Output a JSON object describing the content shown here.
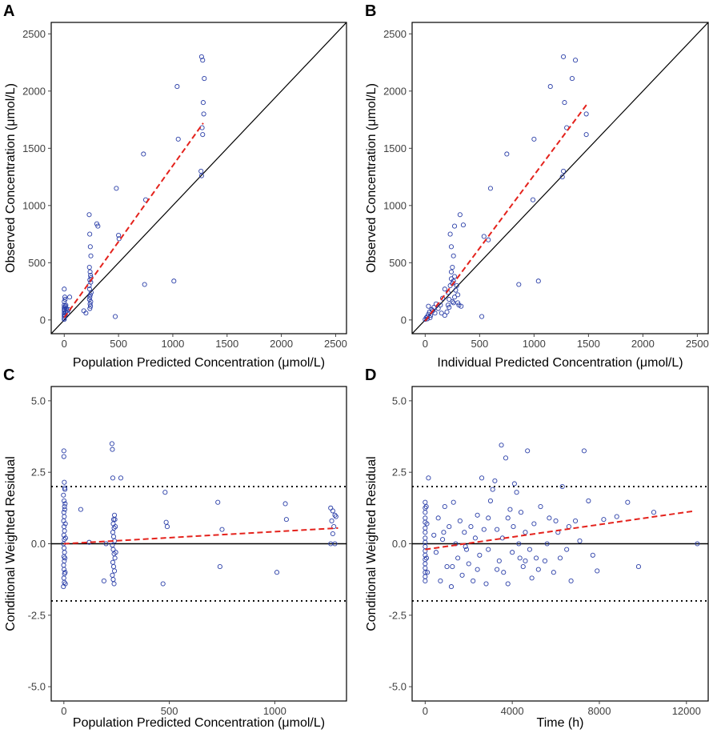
{
  "colors": {
    "point": "#2b3fa8",
    "fit": "#e4221c",
    "frame": "#000000",
    "tick": "#404040"
  },
  "chart_data": [
    {
      "panel": "A",
      "type": "scatter",
      "xlabel": "Population Predicted Concentration (μmol/L)",
      "ylabel": "Observed Concentration (μmol/L)",
      "xlim": [
        -120,
        2600
      ],
      "ylim": [
        -120,
        2600
      ],
      "xticks": [
        0,
        500,
        1000,
        1500,
        2000,
        2500
      ],
      "yticks": [
        0,
        500,
        1000,
        1500,
        2000,
        2500
      ],
      "identity_line": true,
      "fit_line": [
        [
          0,
          20
        ],
        [
          1280,
          1720
        ]
      ],
      "points": [
        [
          0,
          270
        ],
        [
          0,
          160
        ],
        [
          0,
          130
        ],
        [
          0,
          110
        ],
        [
          0,
          95
        ],
        [
          0,
          80
        ],
        [
          0,
          60
        ],
        [
          0,
          45
        ],
        [
          0,
          30
        ],
        [
          0,
          15
        ],
        [
          0,
          5
        ],
        [
          5,
          200
        ],
        [
          8,
          180
        ],
        [
          10,
          120
        ],
        [
          12,
          70
        ],
        [
          3,
          90
        ],
        [
          6,
          40
        ],
        [
          15,
          130
        ],
        [
          20,
          100
        ],
        [
          25,
          80
        ],
        [
          30,
          60
        ],
        [
          40,
          90
        ],
        [
          50,
          200
        ],
        [
          230,
          920
        ],
        [
          235,
          750
        ],
        [
          240,
          640
        ],
        [
          245,
          560
        ],
        [
          232,
          460
        ],
        [
          238,
          420
        ],
        [
          242,
          390
        ],
        [
          246,
          370
        ],
        [
          236,
          350
        ],
        [
          244,
          330
        ],
        [
          230,
          300
        ],
        [
          234,
          270
        ],
        [
          248,
          240
        ],
        [
          240,
          220
        ],
        [
          236,
          200
        ],
        [
          232,
          180
        ],
        [
          244,
          160
        ],
        [
          238,
          140
        ],
        [
          242,
          120
        ],
        [
          236,
          100
        ],
        [
          180,
          80
        ],
        [
          200,
          60
        ],
        [
          300,
          840
        ],
        [
          310,
          820
        ],
        [
          480,
          1150
        ],
        [
          500,
          740
        ],
        [
          505,
          710
        ],
        [
          470,
          30
        ],
        [
          730,
          1450
        ],
        [
          750,
          1050
        ],
        [
          740,
          310
        ],
        [
          1010,
          340
        ],
        [
          1040,
          2040
        ],
        [
          1050,
          1580
        ],
        [
          1265,
          2300
        ],
        [
          1275,
          2270
        ],
        [
          1290,
          2110
        ],
        [
          1280,
          1900
        ],
        [
          1285,
          1800
        ],
        [
          1270,
          1680
        ],
        [
          1275,
          1620
        ],
        [
          1260,
          1300
        ],
        [
          1265,
          1260
        ]
      ]
    },
    {
      "panel": "B",
      "type": "scatter",
      "xlabel": "Individual Predicted Concentration (μmol/L)",
      "ylabel": "Observed Concentration (μmol/L)",
      "xlim": [
        -120,
        2600
      ],
      "ylim": [
        -120,
        2600
      ],
      "xticks": [
        0,
        500,
        1000,
        1500,
        2000,
        2500
      ],
      "yticks": [
        0,
        500,
        1000,
        1500,
        2000,
        2500
      ],
      "identity_line": true,
      "fit_line": [
        [
          0,
          -10
        ],
        [
          1490,
          1890
        ]
      ],
      "points": [
        [
          0,
          5
        ],
        [
          10,
          20
        ],
        [
          20,
          30
        ],
        [
          30,
          50
        ],
        [
          40,
          70
        ],
        [
          60,
          90
        ],
        [
          80,
          110
        ],
        [
          100,
          140
        ],
        [
          20,
          10
        ],
        [
          50,
          40
        ],
        [
          70,
          80
        ],
        [
          90,
          60
        ],
        [
          120,
          100
        ],
        [
          140,
          130
        ],
        [
          160,
          190
        ],
        [
          30,
          120
        ],
        [
          45,
          20
        ],
        [
          150,
          60
        ],
        [
          180,
          40
        ],
        [
          200,
          70
        ],
        [
          210,
          130
        ],
        [
          220,
          110
        ],
        [
          180,
          270
        ],
        [
          210,
          240
        ],
        [
          230,
          300
        ],
        [
          250,
          320
        ],
        [
          260,
          340
        ],
        [
          270,
          380
        ],
        [
          240,
          360
        ],
        [
          220,
          180
        ],
        [
          250,
          160
        ],
        [
          260,
          150
        ],
        [
          270,
          200
        ],
        [
          280,
          260
        ],
        [
          300,
          220
        ],
        [
          240,
          420
        ],
        [
          250,
          460
        ],
        [
          260,
          560
        ],
        [
          240,
          640
        ],
        [
          230,
          750
        ],
        [
          270,
          820
        ],
        [
          320,
          920
        ],
        [
          350,
          830
        ],
        [
          300,
          150
        ],
        [
          330,
          120
        ],
        [
          290,
          300
        ],
        [
          310,
          130
        ],
        [
          520,
          30
        ],
        [
          540,
          730
        ],
        [
          580,
          700
        ],
        [
          600,
          1150
        ],
        [
          750,
          1450
        ],
        [
          860,
          310
        ],
        [
          990,
          1050
        ],
        [
          1000,
          1580
        ],
        [
          1040,
          340
        ],
        [
          1150,
          2040
        ],
        [
          1270,
          2300
        ],
        [
          1380,
          2270
        ],
        [
          1350,
          2110
        ],
        [
          1280,
          1900
        ],
        [
          1300,
          1680
        ],
        [
          1270,
          1300
        ],
        [
          1260,
          1250
        ],
        [
          1480,
          1800
        ],
        [
          1480,
          1620
        ]
      ]
    },
    {
      "panel": "C",
      "type": "scatter",
      "xlabel": "Population Predicted Concentration (μmol/L)",
      "ylabel": "Conditional Weighted Residual",
      "xlim": [
        -60,
        1340
      ],
      "ylim": [
        -5.5,
        5.5
      ],
      "xticks": [
        0,
        500,
        1000
      ],
      "yticks": [
        -5.0,
        -2.5,
        0.0,
        2.5,
        5.0
      ],
      "ytick_labels": [
        "-5.0",
        "-2.5",
        "0.0",
        "2.5",
        "5.0"
      ],
      "reference_lines": [
        -2,
        0,
        2
      ],
      "fit_line": [
        [
          0,
          0.0
        ],
        [
          1300,
          0.55
        ]
      ],
      "points": [
        [
          0,
          3.25
        ],
        [
          0,
          3.05
        ],
        [
          2,
          2.15
        ],
        [
          4,
          1.95
        ],
        [
          -2,
          1.7
        ],
        [
          1,
          1.5
        ],
        [
          3,
          1.3
        ],
        [
          0,
          1.1
        ],
        [
          2,
          0.95
        ],
        [
          -1,
          0.8
        ],
        [
          1,
          0.6
        ],
        [
          3,
          0.45
        ],
        [
          0,
          0.3
        ],
        [
          2,
          0.15
        ],
        [
          -2,
          0.0
        ],
        [
          1,
          -0.15
        ],
        [
          3,
          -0.3
        ],
        [
          0,
          -0.45
        ],
        [
          2,
          -0.6
        ],
        [
          -1,
          -0.75
        ],
        [
          1,
          -0.9
        ],
        [
          3,
          -1.05
        ],
        [
          0,
          -1.2
        ],
        [
          2,
          -1.35
        ],
        [
          -2,
          -1.5
        ],
        [
          5,
          1.9
        ],
        [
          6,
          1.4
        ],
        [
          7,
          0.7
        ],
        [
          5,
          -0.5
        ],
        [
          6,
          -1.0
        ],
        [
          4,
          1.2
        ],
        [
          8,
          0.2
        ],
        [
          7,
          -1.4
        ],
        [
          80,
          1.2
        ],
        [
          120,
          0.05
        ],
        [
          200,
          0.0
        ],
        [
          190,
          -1.3
        ],
        [
          228,
          3.5
        ],
        [
          230,
          3.3
        ],
        [
          232,
          2.3
        ],
        [
          236,
          0.85
        ],
        [
          234,
          0.7
        ],
        [
          238,
          0.55
        ],
        [
          232,
          0.4
        ],
        [
          236,
          0.25
        ],
        [
          240,
          0.1
        ],
        [
          230,
          -0.05
        ],
        [
          234,
          -0.2
        ],
        [
          238,
          -0.35
        ],
        [
          242,
          -0.5
        ],
        [
          232,
          -0.65
        ],
        [
          236,
          -0.8
        ],
        [
          240,
          -0.95
        ],
        [
          230,
          -1.1
        ],
        [
          234,
          -1.25
        ],
        [
          238,
          -1.4
        ],
        [
          244,
          0.6
        ],
        [
          246,
          -0.3
        ],
        [
          240,
          1.0
        ],
        [
          242,
          0.85
        ],
        [
          270,
          2.3
        ],
        [
          480,
          1.8
        ],
        [
          485,
          0.75
        ],
        [
          490,
          0.6
        ],
        [
          470,
          -1.4
        ],
        [
          730,
          1.45
        ],
        [
          750,
          0.5
        ],
        [
          740,
          -0.8
        ],
        [
          1050,
          1.4
        ],
        [
          1055,
          0.85
        ],
        [
          1010,
          -1.0
        ],
        [
          1265,
          1.25
        ],
        [
          1275,
          1.15
        ],
        [
          1285,
          1.0
        ],
        [
          1270,
          0.8
        ],
        [
          1290,
          0.95
        ],
        [
          1280,
          0.6
        ],
        [
          1275,
          0.35
        ],
        [
          1265,
          0.0
        ],
        [
          1285,
          0.0
        ]
      ]
    },
    {
      "panel": "D",
      "type": "scatter",
      "xlabel": "Time (h)",
      "ylabel": "Conditional Weighted Residual",
      "xlim": [
        -600,
        13000
      ],
      "ylim": [
        -5.5,
        5.5
      ],
      "xticks": [
        0,
        4000,
        8000,
        12000
      ],
      "yticks": [
        -5.0,
        -2.5,
        0.0,
        2.5,
        5.0
      ],
      "ytick_labels": [
        "-5.0",
        "-2.5",
        "0.0",
        "2.5",
        "5.0"
      ],
      "reference_lines": [
        -2,
        0,
        2
      ],
      "fit_line": [
        [
          0,
          -0.2
        ],
        [
          12400,
          1.15
        ]
      ],
      "points": [
        [
          0,
          1.45
        ],
        [
          0,
          1.25
        ],
        [
          0,
          1.1
        ],
        [
          0,
          0.9
        ],
        [
          0,
          0.75
        ],
        [
          0,
          0.55
        ],
        [
          0,
          0.4
        ],
        [
          0,
          0.2
        ],
        [
          0,
          0.05
        ],
        [
          0,
          -0.1
        ],
        [
          0,
          -0.25
        ],
        [
          0,
          -0.4
        ],
        [
          0,
          -0.55
        ],
        [
          0,
          -0.7
        ],
        [
          0,
          -0.85
        ],
        [
          0,
          -1.0
        ],
        [
          0,
          -1.15
        ],
        [
          0,
          -1.3
        ],
        [
          50,
          1.3
        ],
        [
          60,
          -0.5
        ],
        [
          80,
          0.7
        ],
        [
          150,
          2.3
        ],
        [
          100,
          -1.0
        ],
        [
          400,
          0.3
        ],
        [
          500,
          -0.3
        ],
        [
          600,
          0.9
        ],
        [
          700,
          -1.3
        ],
        [
          800,
          0.15
        ],
        [
          900,
          1.3
        ],
        [
          1000,
          -0.8
        ],
        [
          1100,
          0.6
        ],
        [
          1200,
          -1.5
        ],
        [
          1300,
          1.45
        ],
        [
          1400,
          0.0
        ],
        [
          1500,
          -0.5
        ],
        [
          1600,
          0.8
        ],
        [
          1700,
          -1.1
        ],
        [
          1800,
          0.4
        ],
        [
          1900,
          -0.2
        ],
        [
          2000,
          -0.7
        ],
        [
          2100,
          0.6
        ],
        [
          2200,
          -1.3
        ],
        [
          2300,
          0.2
        ],
        [
          2400,
          -0.9
        ],
        [
          2500,
          -0.4
        ],
        [
          2600,
          2.3
        ],
        [
          2700,
          0.5
        ],
        [
          2800,
          -1.4
        ],
        [
          2900,
          -0.2
        ],
        [
          3000,
          1.5
        ],
        [
          3100,
          1.9
        ],
        [
          3200,
          2.2
        ],
        [
          3300,
          0.5
        ],
        [
          3400,
          -0.6
        ],
        [
          3500,
          3.45
        ],
        [
          3600,
          -1.0
        ],
        [
          3700,
          3.0
        ],
        [
          3800,
          0.9
        ],
        [
          3900,
          1.2
        ],
        [
          4000,
          -0.3
        ],
        [
          4100,
          2.1
        ],
        [
          4200,
          1.8
        ],
        [
          4300,
          0.0
        ],
        [
          4400,
          1.1
        ],
        [
          4500,
          -0.8
        ],
        [
          4600,
          0.4
        ],
        [
          4700,
          3.25
        ],
        [
          4800,
          -0.2
        ],
        [
          4900,
          -1.2
        ],
        [
          5000,
          0.7
        ],
        [
          5100,
          -0.5
        ],
        [
          5300,
          1.3
        ],
        [
          5500,
          -0.6
        ],
        [
          5700,
          0.9
        ],
        [
          5900,
          -1.0
        ],
        [
          6100,
          0.4
        ],
        [
          6300,
          2.0
        ],
        [
          6500,
          -0.2
        ],
        [
          6700,
          -1.3
        ],
        [
          6900,
          0.8
        ],
        [
          7100,
          0.1
        ],
        [
          7300,
          3.25
        ],
        [
          7500,
          1.5
        ],
        [
          7700,
          -0.4
        ],
        [
          7900,
          -0.95
        ],
        [
          8200,
          0.85
        ],
        [
          8800,
          0.95
        ],
        [
          9300,
          1.45
        ],
        [
          9800,
          -0.8
        ],
        [
          10500,
          1.1
        ],
        [
          12500,
          0.0
        ],
        [
          3300,
          -0.9
        ],
        [
          3800,
          -1.4
        ],
        [
          4050,
          0.6
        ],
        [
          4600,
          -0.6
        ],
        [
          5200,
          -0.9
        ],
        [
          5600,
          0.0
        ],
        [
          6000,
          0.8
        ],
        [
          6200,
          -0.5
        ],
        [
          6600,
          0.6
        ],
        [
          2400,
          1.0
        ],
        [
          1850,
          -0.1
        ],
        [
          1250,
          -0.8
        ],
        [
          850,
          0.4
        ],
        [
          2900,
          0.9
        ],
        [
          3550,
          0.2
        ],
        [
          4350,
          -0.5
        ]
      ]
    }
  ]
}
